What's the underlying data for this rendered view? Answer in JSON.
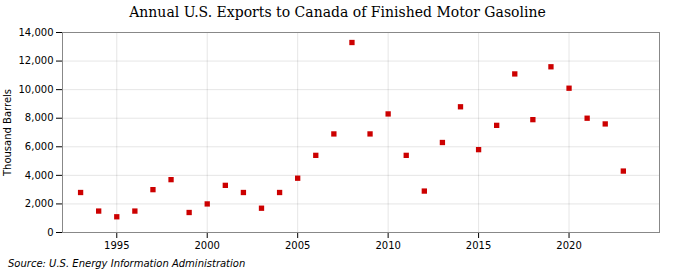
{
  "chart_data": {
    "type": "scatter",
    "title": "Annual U.S. Exports to Canada of Finished Motor Gasoline",
    "ylabel": "Thousand Barrels",
    "annotations": [
      "Source: U.S. Energy Information Administration"
    ],
    "x": [
      1993,
      1994,
      1995,
      1996,
      1997,
      1998,
      1999,
      2000,
      2001,
      2002,
      2003,
      2004,
      2005,
      2006,
      2007,
      2008,
      2009,
      2010,
      2011,
      2012,
      2013,
      2014,
      2015,
      2016,
      2017,
      2018,
      2019,
      2020,
      2021,
      2022,
      2023
    ],
    "values": [
      2800,
      1500,
      1100,
      1500,
      3000,
      3700,
      1400,
      2000,
      3300,
      2800,
      1700,
      2800,
      3800,
      5400,
      6900,
      13300,
      6900,
      8300,
      5400,
      2900,
      6300,
      8800,
      5800,
      7500,
      11100,
      7900,
      11600,
      10100,
      8000,
      7600,
      4300
    ],
    "color": "#cc0000",
    "marker": "square",
    "xlim": [
      1992,
      2025
    ],
    "ylim": [
      0,
      14000
    ],
    "xticks": [
      1995,
      2000,
      2005,
      2010,
      2015,
      2020
    ],
    "yticks": [
      0,
      {
        "value": 2000,
        "label": "2,000"
      },
      {
        "value": 4000,
        "label": "4,000"
      },
      {
        "value": 6000,
        "label": "6,000"
      },
      {
        "value": 8000,
        "label": "8,000"
      },
      {
        "value": 10000,
        "label": "10,000"
      },
      {
        "value": 12000,
        "label": "12,000"
      },
      {
        "value": 14000,
        "label": "14,000"
      }
    ],
    "grid": true
  }
}
